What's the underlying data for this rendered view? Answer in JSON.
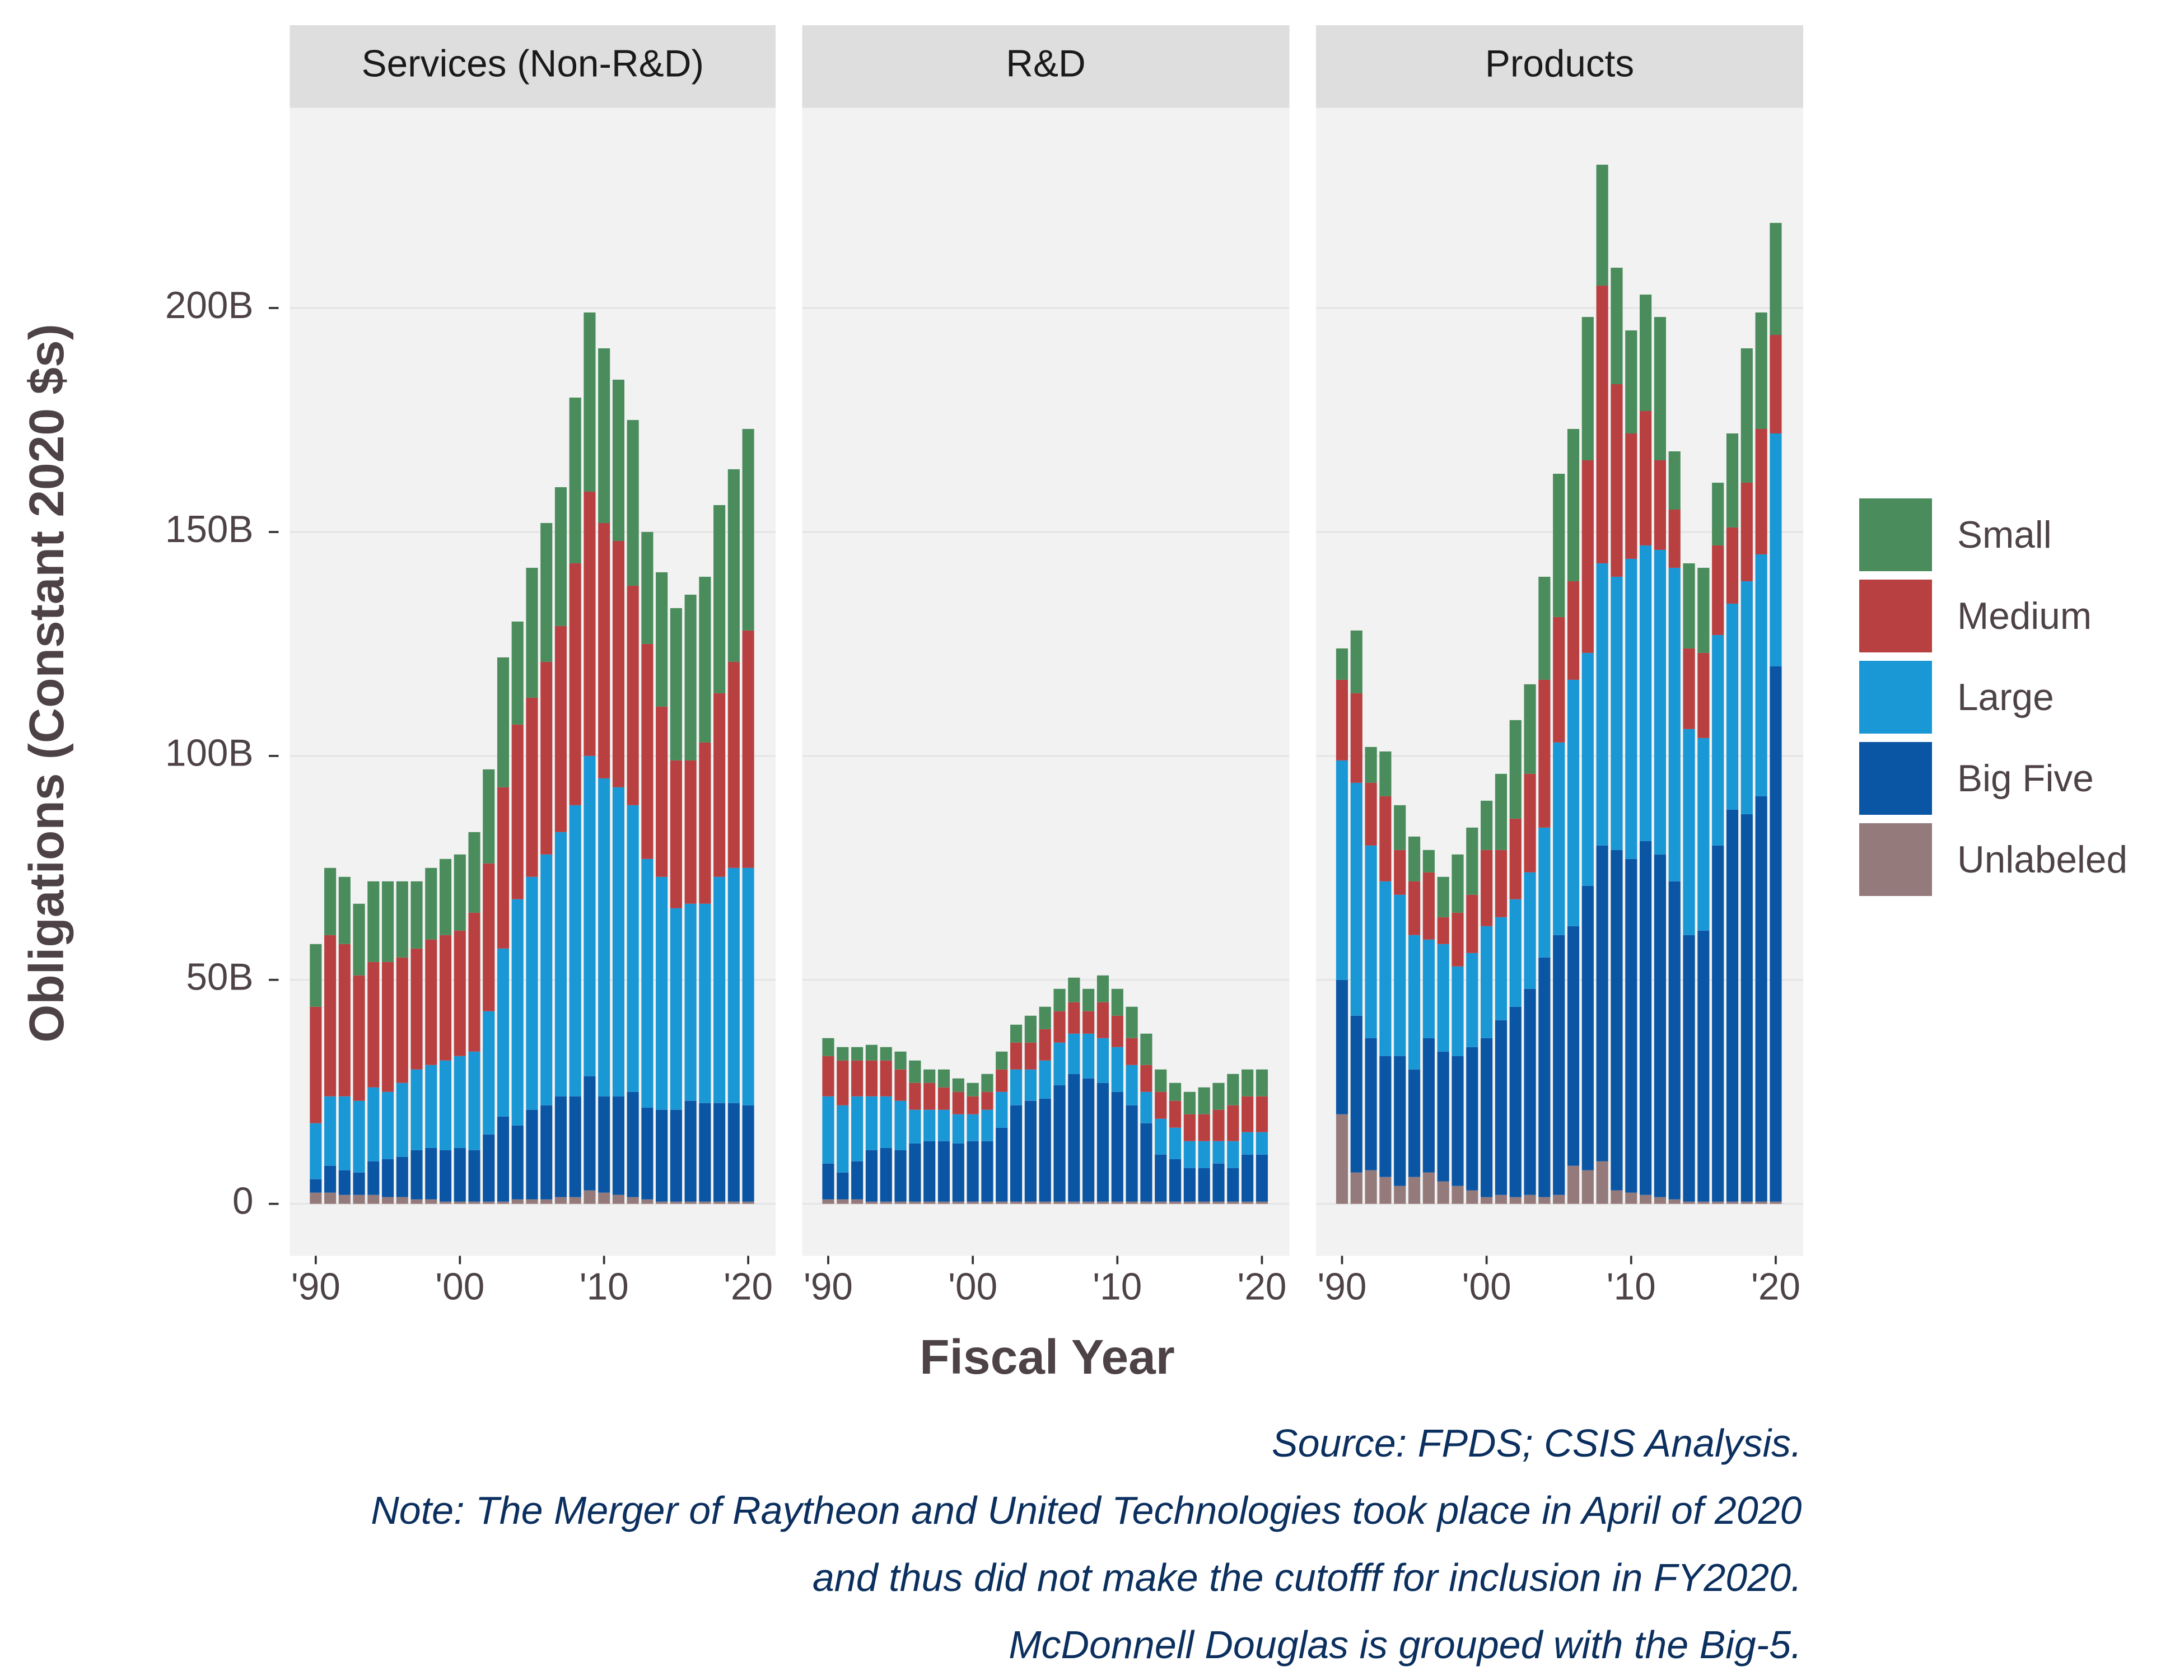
{
  "chart_data": {
    "type": "bar",
    "stacked": true,
    "x_label": "Fiscal Year",
    "y_label": "Obligations (Constant 2020 $s)",
    "x": [
      1990,
      1991,
      1992,
      1993,
      1994,
      1995,
      1996,
      1997,
      1998,
      1999,
      2000,
      2001,
      2002,
      2003,
      2004,
      2005,
      2006,
      2007,
      2008,
      2009,
      2010,
      2011,
      2012,
      2013,
      2014,
      2015,
      2016,
      2017,
      2018,
      2019,
      2020
    ],
    "xlim": [
      1988.2,
      2021.9
    ],
    "xticks": [
      {
        "value": 1990,
        "label": "'90"
      },
      {
        "value": 2000,
        "label": "'00"
      },
      {
        "value": 2010,
        "label": "'10"
      },
      {
        "value": 2020,
        "label": "'20"
      }
    ],
    "ylim": [
      -11.6,
      244.7
    ],
    "yticks": [
      0,
      {
        "value": 50,
        "label": "50B"
      },
      {
        "value": 100,
        "label": "100B"
      },
      {
        "value": 150,
        "label": "150B"
      },
      {
        "value": 200,
        "label": "200B"
      }
    ],
    "grid": true,
    "legend": "right",
    "series": [
      {
        "name": "Small",
        "color": "#4a8c5c"
      },
      {
        "name": "Medium",
        "color": "#b94041"
      },
      {
        "name": "Large",
        "color": "#1a97d5"
      },
      {
        "name": "Big Five",
        "color": "#0a55a4"
      },
      {
        "name": "Unlabeled",
        "color": "#957a7b"
      }
    ],
    "panels": [
      {
        "title": "Services (Non-R&D)",
        "values": [
          [
            14,
            15,
            15,
            16,
            18,
            18,
            17,
            15,
            16,
            17,
            17,
            18,
            21,
            29,
            23,
            29,
            31,
            31,
            37,
            40,
            39,
            36,
            37,
            25,
            30,
            34,
            37,
            37,
            42,
            43,
            45
          ],
          [
            26,
            36,
            34,
            28,
            28,
            29,
            28,
            27,
            28,
            28,
            28,
            31,
            33,
            36,
            39,
            40,
            43,
            46,
            54,
            59,
            57,
            55,
            49,
            48,
            38,
            33,
            32,
            36,
            41,
            46,
            53
          ],
          [
            12.5,
            15.5,
            16.5,
            16,
            16.5,
            15,
            16.5,
            18,
            18.5,
            20,
            20.5,
            22,
            27.5,
            37.5,
            50.5,
            52,
            56,
            59,
            65,
            71.5,
            71,
            69,
            64,
            55.5,
            52,
            45,
            44,
            44.5,
            50.5,
            52.5,
            53
          ],
          [
            3,
            6,
            5.5,
            5,
            7.5,
            8.5,
            9,
            11,
            11.5,
            11.5,
            12,
            11.5,
            15,
            19,
            16.5,
            20,
            21,
            22.5,
            22.5,
            25.5,
            21.5,
            22,
            23.5,
            20.5,
            20.5,
            20.5,
            22.5,
            22,
            22,
            22,
            21.5
          ],
          [
            2.5,
            2.5,
            2,
            2,
            2,
            1.5,
            1.5,
            1,
            1,
            0.5,
            0.5,
            0.5,
            0.5,
            0.5,
            1,
            1,
            1,
            1.5,
            1.5,
            3,
            2.5,
            2,
            1.5,
            1,
            0.5,
            0.5,
            0.5,
            0.5,
            0.5,
            0.5,
            0.5
          ]
        ]
      },
      {
        "title": "R&D",
        "values": [
          [
            4,
            3,
            3,
            3.5,
            3,
            4,
            5,
            3,
            4,
            3,
            3,
            4,
            4,
            4,
            6,
            5,
            5,
            5.5,
            5,
            6,
            6,
            7,
            7,
            5,
            4,
            5,
            6,
            6,
            7,
            6,
            6
          ],
          [
            9,
            10,
            8,
            8,
            8,
            7,
            6,
            6,
            5,
            5,
            4,
            4,
            5,
            6,
            6,
            7,
            7,
            7,
            5,
            8,
            7,
            6,
            6,
            6,
            6,
            6,
            6,
            7,
            8,
            8,
            8
          ],
          [
            15,
            15,
            14.5,
            12,
            11.5,
            11,
            7.5,
            7,
            7,
            6.5,
            6,
            7,
            8,
            8,
            7,
            8.5,
            9.5,
            9,
            10,
            10,
            10,
            9,
            7,
            8,
            7,
            6,
            6,
            5,
            6,
            5,
            5
          ],
          [
            8,
            6,
            8.5,
            11.5,
            12,
            11.5,
            13,
            13.5,
            13.5,
            13,
            13.5,
            13.5,
            16.5,
            21.5,
            22.5,
            23,
            26,
            28.5,
            27.5,
            26.5,
            24.5,
            21.5,
            17.5,
            10.5,
            9.5,
            7.5,
            7.5,
            8.5,
            7.5,
            10.5,
            10.5
          ],
          [
            1,
            1,
            1,
            0.5,
            0.5,
            0.5,
            0.5,
            0.5,
            0.5,
            0.5,
            0.5,
            0.5,
            0.5,
            0.5,
            0.5,
            0.5,
            0.5,
            0.5,
            0.5,
            0.5,
            0.5,
            0.5,
            0.5,
            0.5,
            0.5,
            0.5,
            0.5,
            0.5,
            0.5,
            0.5,
            0.5
          ]
        ]
      },
      {
        "title": "Products",
        "values": [
          [
            7,
            14,
            8,
            10,
            10,
            10,
            5,
            9,
            13,
            15,
            11,
            17,
            22,
            20,
            23,
            32,
            34,
            32,
            27,
            26,
            23,
            26,
            32,
            13,
            19,
            19,
            14,
            21,
            30,
            26,
            25
          ],
          [
            18,
            20,
            14,
            19,
            10,
            12,
            15,
            6,
            12,
            13,
            17,
            15,
            18,
            22,
            33,
            28,
            22,
            43,
            62,
            43,
            28,
            30,
            20,
            13,
            18,
            19,
            20,
            17,
            22,
            28,
            22
          ],
          [
            49,
            52,
            43,
            39,
            36,
            30,
            22,
            24,
            20,
            21,
            25,
            23,
            24,
            26,
            29,
            43,
            55,
            52,
            63,
            61,
            67,
            66,
            68,
            70,
            46,
            43,
            47,
            46,
            52,
            54,
            52
          ],
          [
            30,
            35,
            29.5,
            27,
            29,
            24,
            30,
            29,
            29,
            32,
            35.5,
            39,
            42.5,
            46,
            53.5,
            58,
            53.5,
            63.5,
            70.5,
            76,
            74.5,
            79,
            76.5,
            71,
            59.5,
            60.5,
            79.5,
            87.5,
            86.5,
            90.5,
            119.5
          ],
          [
            20,
            7,
            7.5,
            6,
            4,
            6,
            7,
            5,
            4,
            3,
            1.5,
            2,
            1.5,
            2,
            1.5,
            2,
            8.5,
            7.5,
            9.5,
            3,
            2.5,
            2,
            1.5,
            1,
            0.5,
            0.5,
            0.5,
            0.5,
            0.5,
            0.5,
            0.5
          ]
        ]
      }
    ],
    "source": "Source: FPDS; CSIS Analysis.",
    "notes": [
      "Note: The Merger of Raytheon and United Technologies took place in April of 2020",
      "and thus did not make the cutofff for inclusion in FY2020.",
      "McDonnell Douglas is grouped with the Big-5."
    ]
  }
}
